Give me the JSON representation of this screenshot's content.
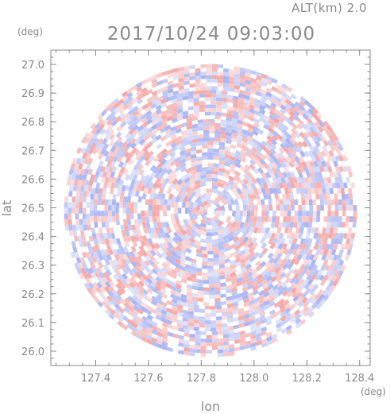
{
  "header": {
    "altitude": "ALT(km) 2.0",
    "timestamp": "2017/10/24 09:03:00"
  },
  "colors": {
    "positive": "#f4a7a7",
    "negative": "#a9b4f2",
    "neutral": "#ffffff",
    "axis": "#8a8a8a"
  },
  "chart_data": {
    "type": "heatmap",
    "title": "",
    "xlabel": "lon",
    "ylabel": "lat",
    "xunit": "(deg)",
    "yunit": "(deg)",
    "xlim": [
      127.23,
      128.44
    ],
    "ylim": [
      25.95,
      27.05
    ],
    "xticks": [
      127.4,
      127.6,
      127.8,
      128.0,
      128.2,
      128.4
    ],
    "xtick_labels": [
      "127.4",
      "127.6",
      "127.8",
      "128.0",
      "128.2",
      "128.4"
    ],
    "yticks": [
      26.0,
      26.1,
      26.2,
      26.3,
      26.4,
      26.5,
      26.6,
      26.7,
      26.8,
      26.9,
      27.0
    ],
    "ytick_labels": [
      "26.0",
      "26.1",
      "26.2",
      "26.3",
      "26.4",
      "26.5",
      "26.6",
      "26.7",
      "26.8",
      "26.9",
      "27.0"
    ],
    "center": {
      "lon": 127.835,
      "lat": 26.49
    },
    "radius_deg": 0.555,
    "field": "diverging red/blue polar scan pattern (positive = red, negative = blue)"
  }
}
